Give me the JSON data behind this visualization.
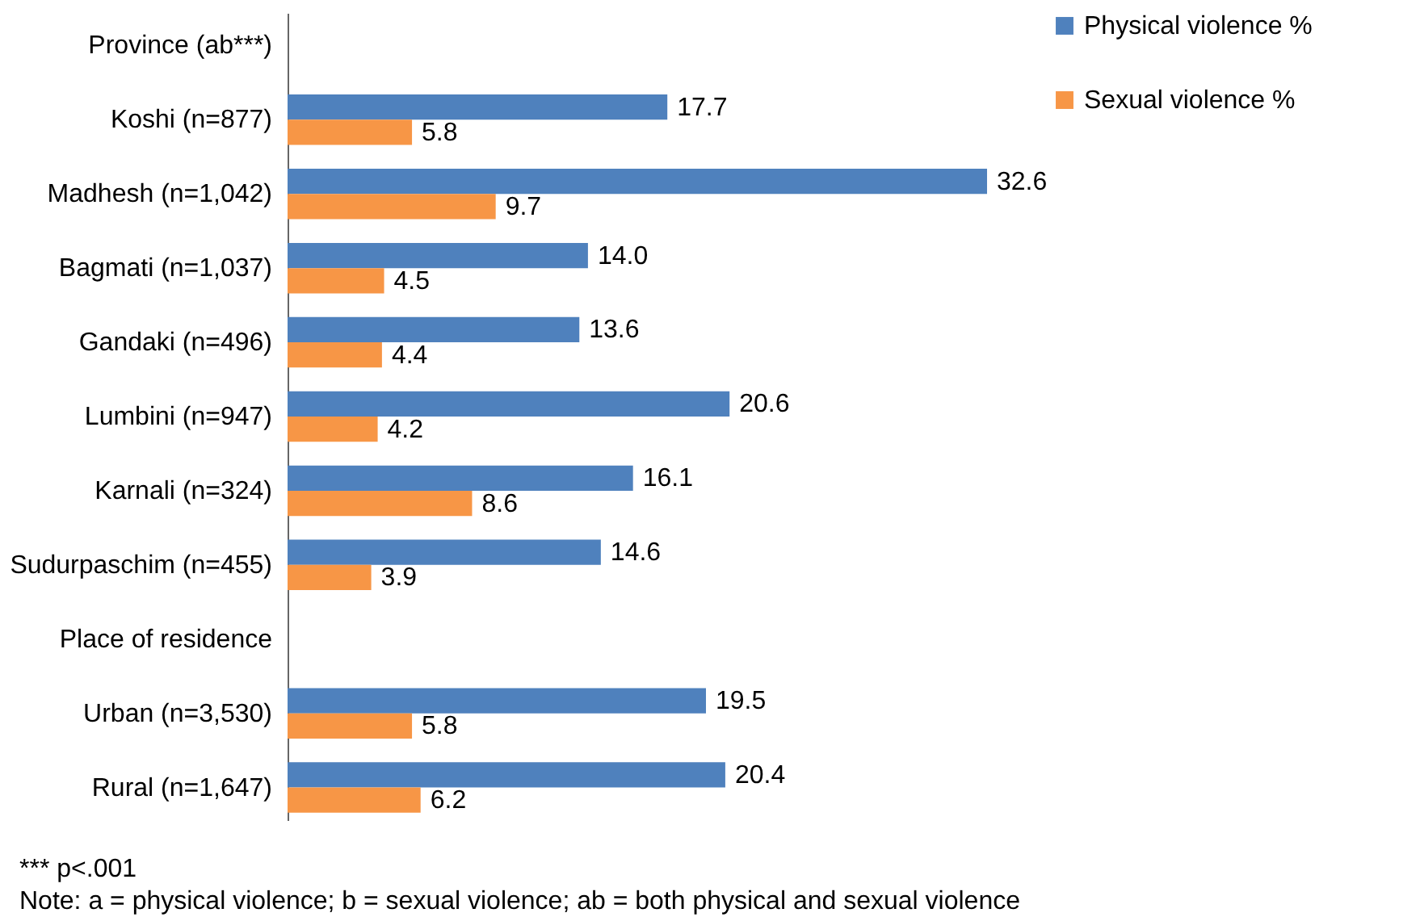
{
  "chart_data": {
    "type": "bar",
    "orientation": "horizontal",
    "categories": [
      "Province (ab***)",
      "Koshi (n=877)",
      "Madhesh (n=1,042)",
      "Bagmati (n=1,037)",
      "Gandaki (n=496)",
      "Lumbini (n=947)",
      "Karnali  (n=324)",
      "Sudurpaschim (n=455)",
      "Place of residence",
      "Urban (n=3,530)",
      "Rural (n=1,647)"
    ],
    "series": [
      {
        "name": "Physical violence %",
        "color": "#4f81bd",
        "values": [
          null,
          17.7,
          32.6,
          14.0,
          13.6,
          20.6,
          16.1,
          14.6,
          null,
          19.5,
          20.4
        ],
        "value_labels": [
          null,
          "17.7",
          "32.6",
          "14.0",
          "13.6",
          "20.6",
          "16.1",
          "14.6",
          null,
          "19.5",
          "20.4"
        ]
      },
      {
        "name": "Sexual violence %",
        "color": "#f79646",
        "values": [
          null,
          5.8,
          9.7,
          4.5,
          4.4,
          4.2,
          8.6,
          3.9,
          null,
          5.8,
          6.2
        ],
        "value_labels": [
          null,
          "5.8",
          "9.7",
          "4.5",
          "4.4",
          "4.2",
          "8.6",
          "3.9",
          null,
          "5.8",
          "6.2"
        ]
      }
    ],
    "legend": "top right",
    "annotations": [
      "*** p<.001",
      "Note: a = physical violence; b = sexual violence; ab = both physical and sexual violence"
    ]
  }
}
